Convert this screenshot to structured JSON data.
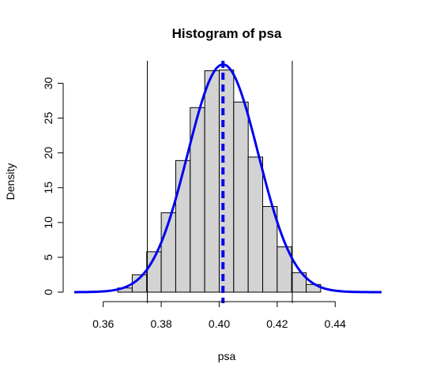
{
  "chart_data": {
    "type": "bar",
    "title": "Histogram of psa",
    "xlabel": "psa",
    "ylabel": "Density",
    "xlim": [
      0.35,
      0.456
    ],
    "ylim": [
      0,
      33
    ],
    "xticks": [
      0.36,
      0.38,
      0.4,
      0.42,
      0.44
    ],
    "xtick_labels": [
      "0.36",
      "0.38",
      "0.40",
      "0.42",
      "0.44"
    ],
    "yticks": [
      0,
      5,
      10,
      15,
      20,
      25,
      30
    ],
    "ytick_labels": [
      "0",
      "5",
      "10",
      "15",
      "20",
      "25",
      "30"
    ],
    "grid": false,
    "histogram": {
      "bin_width": 0.005,
      "bins": [
        {
          "x0": 0.365,
          "x1": 0.37,
          "value": 0.6
        },
        {
          "x0": 0.37,
          "x1": 0.375,
          "value": 2.5
        },
        {
          "x0": 0.375,
          "x1": 0.38,
          "value": 5.8
        },
        {
          "x0": 0.38,
          "x1": 0.385,
          "value": 11.4
        },
        {
          "x0": 0.385,
          "x1": 0.39,
          "value": 18.9
        },
        {
          "x0": 0.39,
          "x1": 0.395,
          "value": 26.5
        },
        {
          "x0": 0.395,
          "x1": 0.4,
          "value": 31.8
        },
        {
          "x0": 0.4,
          "x1": 0.405,
          "value": 31.9
        },
        {
          "x0": 0.405,
          "x1": 0.41,
          "value": 27.3
        },
        {
          "x0": 0.41,
          "x1": 0.415,
          "value": 19.4
        },
        {
          "x0": 0.415,
          "x1": 0.42,
          "value": 12.3
        },
        {
          "x0": 0.42,
          "x1": 0.425,
          "value": 6.5
        },
        {
          "x0": 0.425,
          "x1": 0.43,
          "value": 2.8
        },
        {
          "x0": 0.43,
          "x1": 0.435,
          "value": 1.1
        }
      ],
      "fill": "#d3d3d3",
      "stroke": "#000000"
    },
    "density_curve": {
      "mean": 0.4013,
      "sd": 0.0122,
      "x_range": [
        0.35,
        0.456
      ],
      "color": "#0000ee"
    },
    "vertical_lines": [
      {
        "x": 0.3752,
        "color": "#000000",
        "style": "solid"
      },
      {
        "x": 0.4013,
        "color": "#0000ee",
        "style": "dashed"
      },
      {
        "x": 0.4252,
        "color": "#000000",
        "style": "solid"
      }
    ]
  }
}
